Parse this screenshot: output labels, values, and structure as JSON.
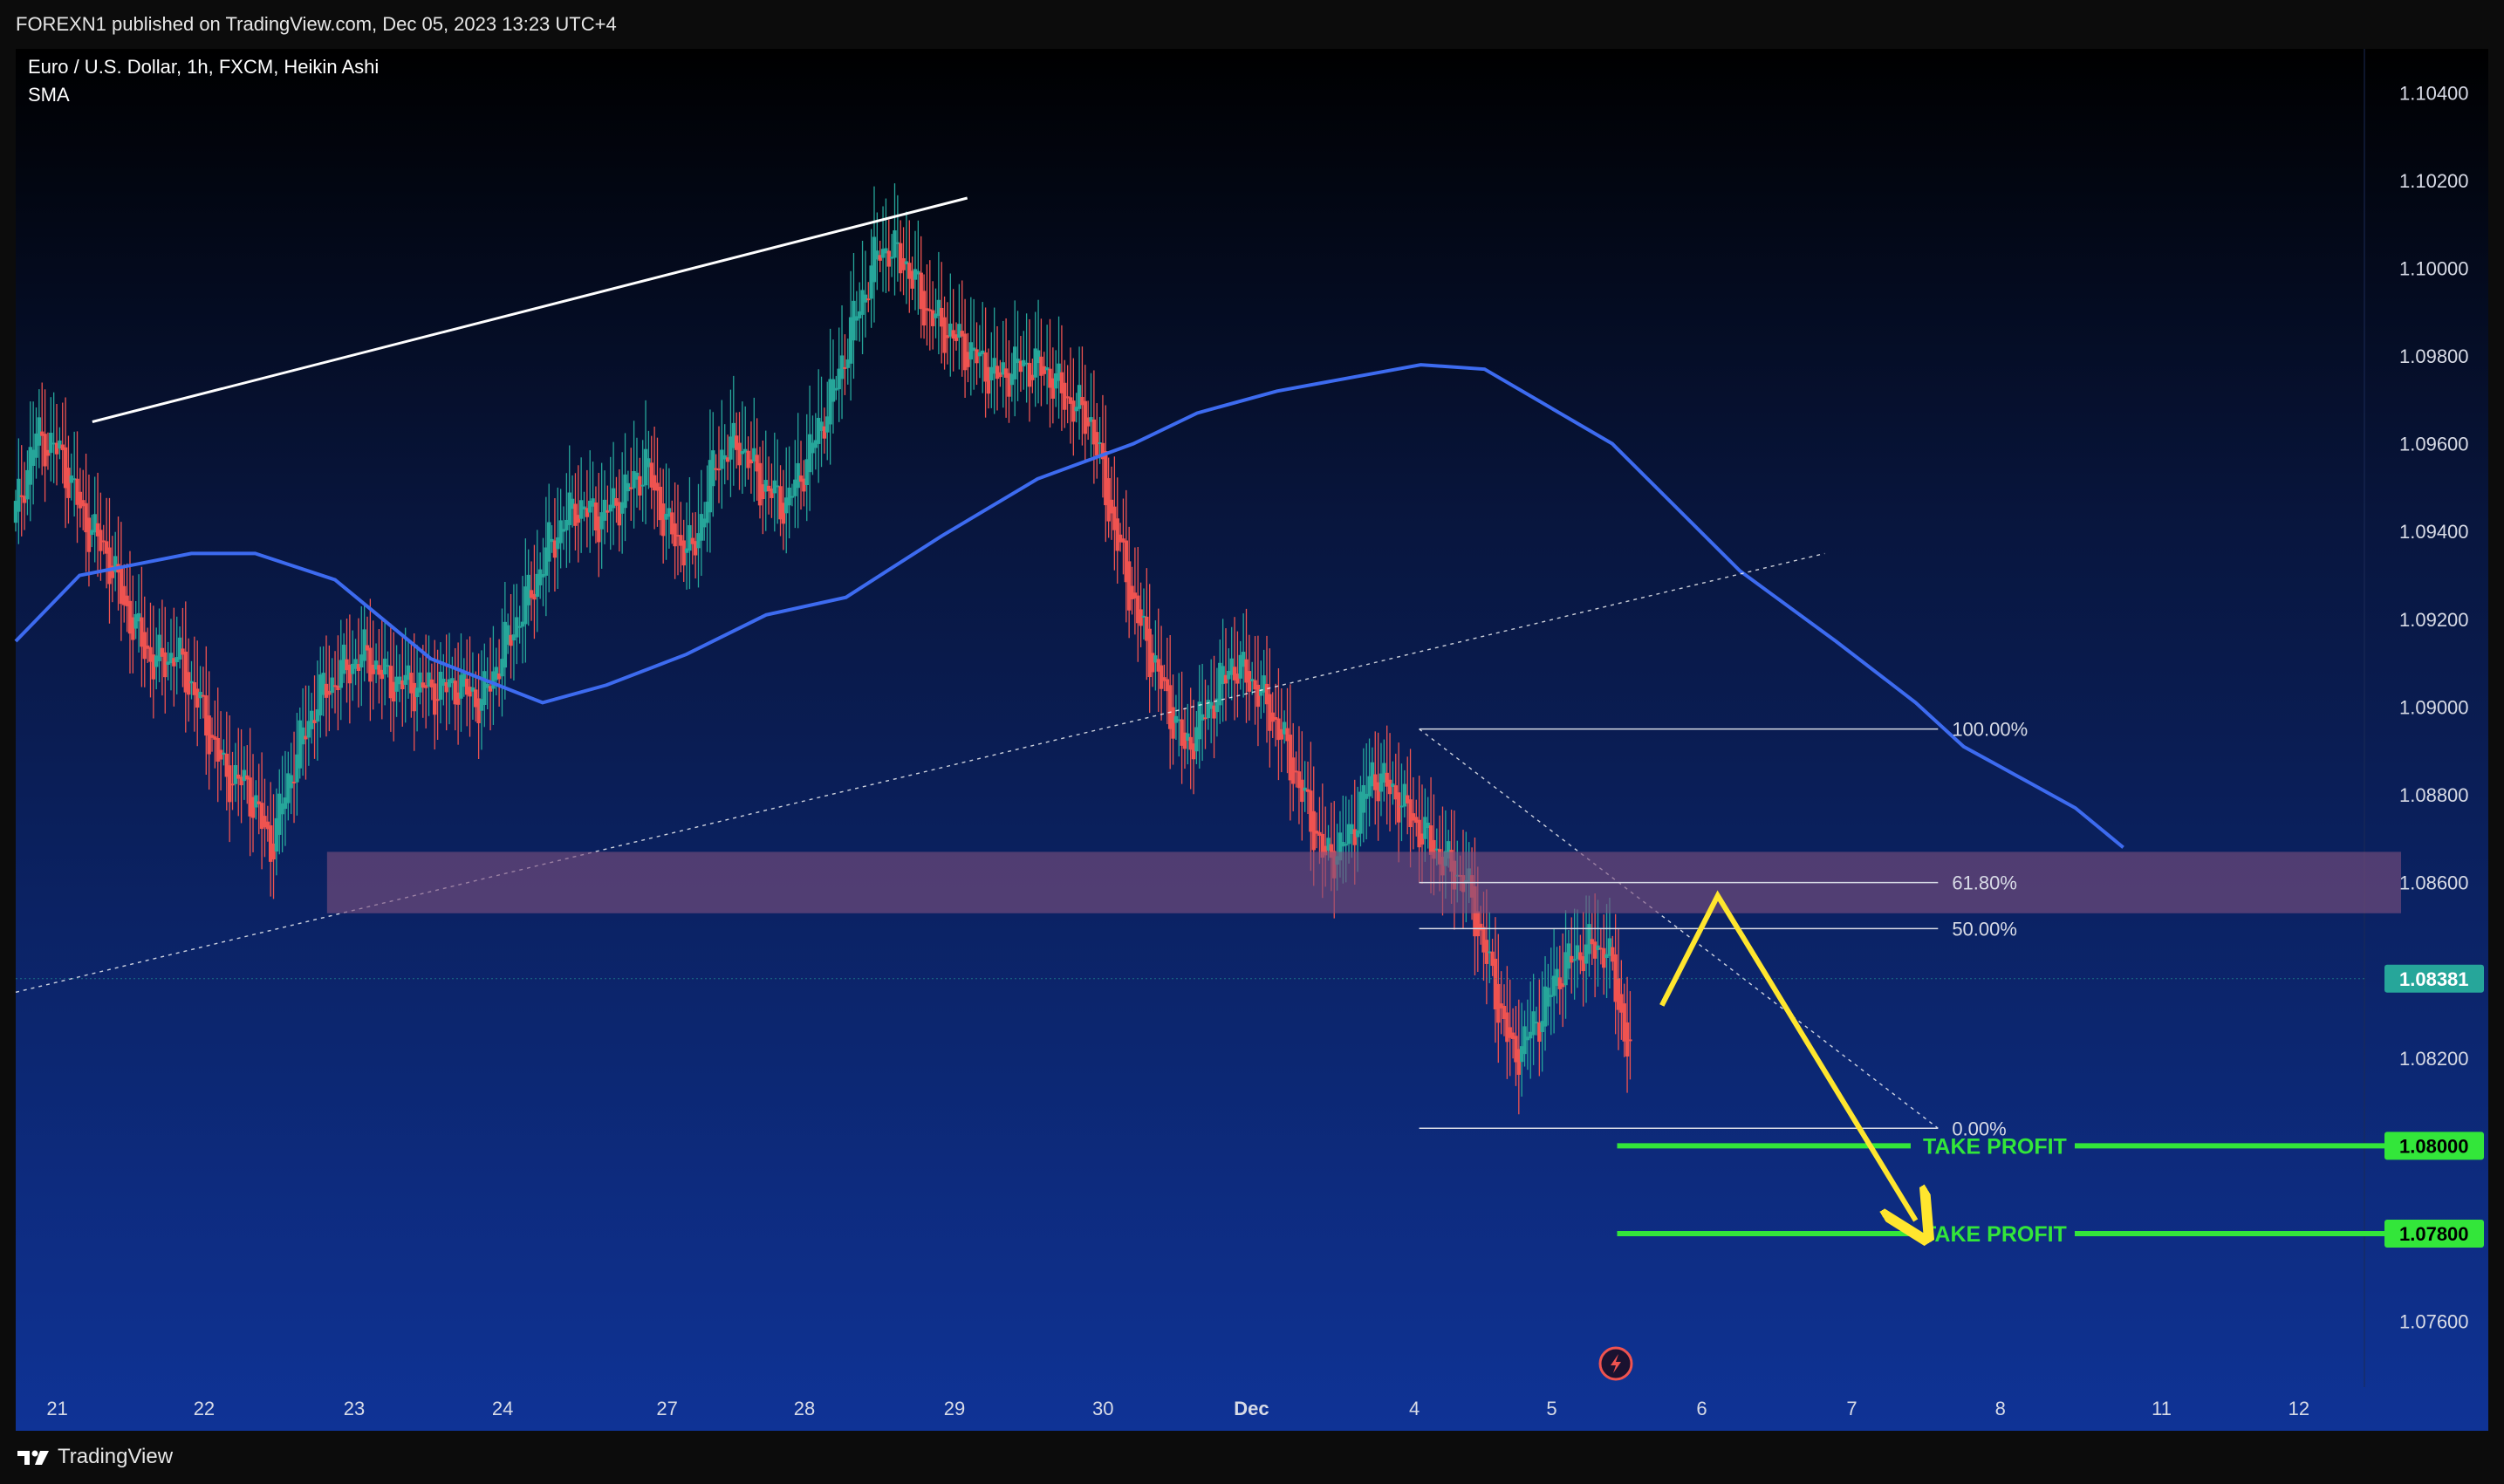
{
  "header": {
    "published_text": "FOREXN1 published on TradingView.com, Dec 05, 2023 13:23 UTC+4"
  },
  "footer": {
    "brand": "TradingView"
  },
  "colors": {
    "bull": "#26a69a",
    "bear": "#ef5350",
    "sma": "#3d6bf0",
    "zone": "#7d4f7e",
    "take_profit": "#33e63a",
    "arrow": "#ffe62e",
    "price_label": "#26a69a"
  },
  "chart_data": {
    "type": "candlestick",
    "title": "Euro / U.S. Dollar, 1h, FXCM, Heikin Ashi",
    "indicator": "SMA",
    "ylim": [
      1.0745,
      1.105
    ],
    "price_ticks": [
      "1.10400",
      "1.10200",
      "1.10000",
      "1.09800",
      "1.09600",
      "1.09400",
      "1.09200",
      "1.09000",
      "1.08800",
      "1.08600",
      "1.08200",
      "1.07600"
    ],
    "x_ticks": [
      "21",
      "22",
      "23",
      "24",
      "27",
      "28",
      "29",
      "30",
      "Dec",
      "4",
      "5",
      "6",
      "7",
      "8",
      "11",
      "12"
    ],
    "current_price": "1.08381",
    "approx_closes": [
      1.0942,
      1.0962,
      1.0958,
      1.0943,
      1.0935,
      1.092,
      1.091,
      1.0912,
      1.09,
      1.0885,
      1.0882,
      1.0868,
      1.0888,
      1.0902,
      1.0908,
      1.0912,
      1.0906,
      1.0905,
      1.0904,
      1.0905,
      1.0901,
      1.0914,
      1.0925,
      1.0938,
      1.0946,
      1.0943,
      1.0948,
      1.0955,
      1.094,
      1.0935,
      1.0957,
      1.096,
      1.095,
      1.0946,
      1.0958,
      1.0972,
      1.099,
      1.1005,
      1.1002,
      1.099,
      1.0985,
      1.098,
      1.0975,
      1.0978,
      1.0977,
      1.097,
      1.0965,
      1.094,
      1.092,
      1.0905,
      1.089,
      1.09,
      1.091,
      1.0905,
      1.0895,
      1.088,
      1.0865,
      1.087,
      1.0885,
      1.088,
      1.0872,
      1.0865,
      1.086,
      1.084,
      1.082,
      1.0828,
      1.084,
      1.0845,
      1.0845,
      1.082
    ],
    "sma": [
      [
        0,
        1.0915
      ],
      [
        40,
        1.093
      ],
      [
        110,
        1.0935
      ],
      [
        150,
        1.0935
      ],
      [
        200,
        1.0929
      ],
      [
        260,
        1.0911
      ],
      [
        330,
        1.0901
      ],
      [
        370,
        1.0905
      ],
      [
        420,
        1.0912
      ],
      [
        470,
        1.0921
      ],
      [
        520,
        1.0925
      ],
      [
        580,
        1.0939
      ],
      [
        640,
        1.0952
      ],
      [
        700,
        1.096
      ],
      [
        740,
        1.0967
      ],
      [
        790,
        1.0972
      ],
      [
        850,
        1.0976
      ],
      [
        880,
        1.0978
      ],
      [
        920,
        1.0977
      ],
      [
        1000,
        1.096
      ],
      [
        1080,
        1.0931
      ],
      [
        1140,
        1.0915
      ],
      [
        1190,
        1.0901
      ],
      [
        1220,
        1.0891
      ],
      [
        1260,
        1.0883
      ],
      [
        1290,
        1.0877
      ],
      [
        1320,
        1.0868
      ]
    ],
    "trendlines": [
      {
        "from": [
          48,
          1.0965
        ],
        "to": [
          596,
          1.1016
        ],
        "style": "solid"
      },
      {
        "from": [
          0,
          1.0835
        ],
        "to": [
          1133,
          1.0935
        ],
        "style": "dotted"
      },
      {
        "from": [
          879,
          1.0895
        ],
        "to": [
          1204,
          1.0804
        ],
        "style": "dotted"
      }
    ],
    "zone": {
      "x_from": 195,
      "x_to": 1494,
      "y_top": 1.0867,
      "y_bottom": 1.0853
    },
    "fibonacci": [
      {
        "label": "100.00%",
        "price": 1.0895
      },
      {
        "label": "61.80%",
        "price": 1.086
      },
      {
        "label": "50.00%",
        "price": 1.08495
      },
      {
        "label": "0.00%",
        "price": 1.0804
      }
    ],
    "fib_x": [
      879,
      1204
    ],
    "take_profit": [
      {
        "label": "TAKE PROFIT",
        "price": "1.08000",
        "value": 1.08
      },
      {
        "label": "TAKE PROFIT",
        "price": "1.07800",
        "value": 1.078
      }
    ],
    "tp_x": [
      1003,
      1494
    ],
    "arrow_path": [
      [
        1031,
        1.0832
      ],
      [
        1066,
        1.0857
      ],
      [
        1190,
        1.0783
      ]
    ]
  }
}
